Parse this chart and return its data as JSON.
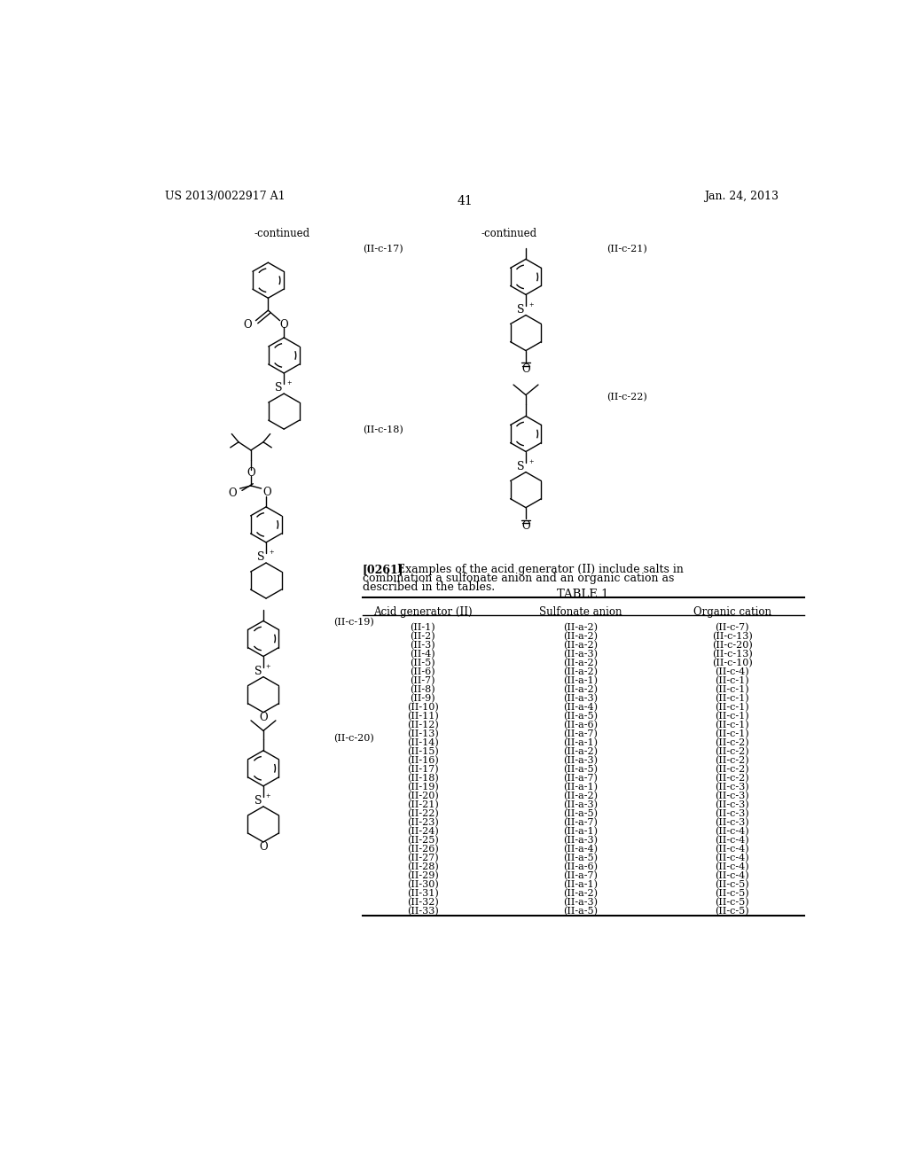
{
  "page_number": "41",
  "patent_number": "US 2013/0022917 A1",
  "patent_date": "Jan. 24, 2013",
  "continued_left": "-continued",
  "continued_right": "-continued",
  "label_IIc17": "(II-c-17)",
  "label_IIc18": "(II-c-18)",
  "label_IIc19": "(II-c-19)",
  "label_IIc20": "(II-c-20)",
  "label_IIc21": "(II-c-21)",
  "label_IIc22": "(II-c-22)",
  "paragraph_bold": "[0261]",
  "paragraph_text": "   Examples of the acid generator (II) include salts in\ncombination a sulfonate anion and an organic cation as\ndescribed in the tables.",
  "table_title": "TABLE 1",
  "table_headers": [
    "Acid generator (II)",
    "Sulfonate anion",
    "Organic cation"
  ],
  "table_rows": [
    [
      "(II-1)",
      "(II-a-2)",
      "(II-c-7)"
    ],
    [
      "(II-2)",
      "(II-a-2)",
      "(II-c-13)"
    ],
    [
      "(II-3)",
      "(II-a-2)",
      "(II-c-20)"
    ],
    [
      "(II-4)",
      "(II-a-3)",
      "(II-c-13)"
    ],
    [
      "(II-5)",
      "(II-a-2)",
      "(II-c-10)"
    ],
    [
      "(II-6)",
      "(II-a-2)",
      "(II-c-4)"
    ],
    [
      "(II-7)",
      "(II-a-1)",
      "(II-c-1)"
    ],
    [
      "(II-8)",
      "(II-a-2)",
      "(II-c-1)"
    ],
    [
      "(II-9)",
      "(II-a-3)",
      "(II-c-1)"
    ],
    [
      "(II-10)",
      "(II-a-4)",
      "(II-c-1)"
    ],
    [
      "(II-11)",
      "(II-a-5)",
      "(II-c-1)"
    ],
    [
      "(II-12)",
      "(II-a-6)",
      "(II-c-1)"
    ],
    [
      "(II-13)",
      "(II-a-7)",
      "(II-c-1)"
    ],
    [
      "(II-14)",
      "(II-a-1)",
      "(II-c-2)"
    ],
    [
      "(II-15)",
      "(II-a-2)",
      "(II-c-2)"
    ],
    [
      "(II-16)",
      "(II-a-3)",
      "(II-c-2)"
    ],
    [
      "(II-17)",
      "(II-a-5)",
      "(II-c-2)"
    ],
    [
      "(II-18)",
      "(II-a-7)",
      "(II-c-2)"
    ],
    [
      "(II-19)",
      "(II-a-1)",
      "(II-c-3)"
    ],
    [
      "(II-20)",
      "(II-a-2)",
      "(II-c-3)"
    ],
    [
      "(II-21)",
      "(II-a-3)",
      "(II-c-3)"
    ],
    [
      "(II-22)",
      "(II-a-5)",
      "(II-c-3)"
    ],
    [
      "(II-23)",
      "(II-a-7)",
      "(II-c-3)"
    ],
    [
      "(II-24)",
      "(II-a-1)",
      "(II-c-4)"
    ],
    [
      "(II-25)",
      "(II-a-3)",
      "(II-c-4)"
    ],
    [
      "(II-26)",
      "(II-a-4)",
      "(II-c-4)"
    ],
    [
      "(II-27)",
      "(II-a-5)",
      "(II-c-4)"
    ],
    [
      "(II-28)",
      "(II-a-6)",
      "(II-c-4)"
    ],
    [
      "(II-29)",
      "(II-a-7)",
      "(II-c-4)"
    ],
    [
      "(II-30)",
      "(II-a-1)",
      "(II-c-5)"
    ],
    [
      "(II-31)",
      "(II-a-2)",
      "(II-c-5)"
    ],
    [
      "(II-32)",
      "(II-a-3)",
      "(II-c-5)"
    ],
    [
      "(II-33)",
      "(II-a-5)",
      "(II-c-5)"
    ]
  ],
  "bg_color": "#ffffff"
}
